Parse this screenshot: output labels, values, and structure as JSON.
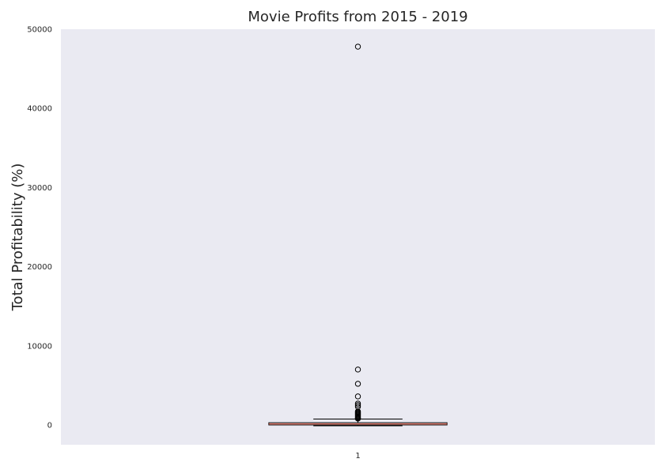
{
  "chart_data": {
    "type": "box",
    "title": "Movie Profits from 2015 - 2019",
    "xlabel": "",
    "ylabel": "Total Profitability (%)",
    "categories": [
      "1"
    ],
    "ylim": [
      -2500,
      50000
    ],
    "y_ticks": [
      "0",
      "10000",
      "20000",
      "30000",
      "40000",
      "50000"
    ],
    "x_ticks": [
      "1"
    ],
    "grid": false,
    "background_color": "#eaeaf2",
    "box_edge_color": "#000000",
    "median_color": "#e24a33",
    "boxes": [
      {
        "category": "1",
        "whisker_low": -100,
        "q1": 0,
        "median": 120,
        "q3": 280,
        "whisker_high": 750,
        "outliers": [
          47800,
          7000,
          5200,
          3600,
          2700,
          2500,
          2300,
          1700,
          1600,
          1500,
          1400,
          1300,
          1200,
          1100,
          1000,
          900,
          850,
          800
        ]
      }
    ]
  }
}
